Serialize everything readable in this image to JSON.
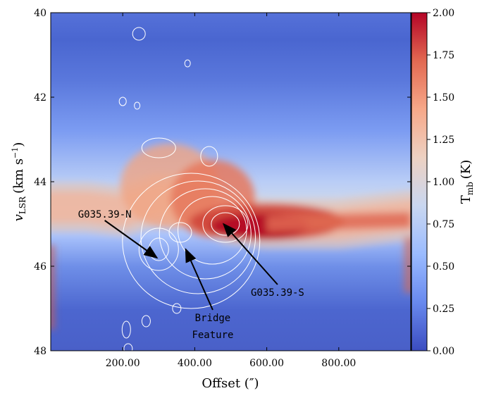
{
  "chart_data": {
    "type": "heatmap",
    "title": "",
    "xlabel": "Offset (″)",
    "ylabel_main": "v",
    "ylabel_sub": "LSR",
    "ylabel_unit": "(km s",
    "ylabel_exp": "−1",
    "ylabel_close": ")",
    "xlim": [
      0,
      1000
    ],
    "ylim": [
      48,
      40
    ],
    "x_ticks": [
      200,
      400,
      600,
      800
    ],
    "x_tick_labels": [
      "200.00",
      "400.00",
      "600.00",
      "800.00"
    ],
    "y_ticks": [
      40,
      42,
      44,
      46,
      48
    ],
    "y_tick_labels": [
      "40",
      "42",
      "44",
      "46",
      "48"
    ],
    "colorbar": {
      "label_main": "T",
      "label_sub": "mb",
      "label_unit": "(K)",
      "min": 0.0,
      "max": 2.0,
      "ticks": [
        0.0,
        0.25,
        0.5,
        0.75,
        1.0,
        1.25,
        1.5,
        1.75,
        2.0
      ],
      "tick_labels": [
        "0.00",
        "0.25",
        "0.50",
        "0.75",
        "1.00",
        "1.25",
        "1.50",
        "1.75",
        "2.00"
      ],
      "colormap": "coolwarm",
      "colors": [
        "#3b4cc0",
        "#6889ee",
        "#9abbff",
        "#c9d7f0",
        "#edd1c2",
        "#f7a889",
        "#e26952",
        "#b40426"
      ]
    },
    "emission_ridge": [
      {
        "x": 0,
        "v": 44.6
      },
      {
        "x": 100,
        "v": 44.6
      },
      {
        "x": 200,
        "v": 44.7
      },
      {
        "x": 300,
        "v": 44.4
      },
      {
        "x": 400,
        "v": 44.5
      },
      {
        "x": 500,
        "v": 44.9
      },
      {
        "x": 600,
        "v": 45.0
      },
      {
        "x": 700,
        "v": 45.0
      },
      {
        "x": 800,
        "v": 45.0
      },
      {
        "x": 900,
        "v": 44.9
      },
      {
        "x": 1000,
        "v": 44.8
      }
    ],
    "contour_overlay": "white contours of a second tracer centred near offset 200–550″, v ≈ 44–47.5 km/s",
    "annotations": [
      {
        "text": "G035.39-N",
        "label_at": [
          150,
          44.85
        ],
        "arrow_to": [
          295,
          45.8
        ]
      },
      {
        "text": "G035.39-S",
        "label_at": [
          630,
          46.7
        ],
        "arrow_to": [
          480,
          45.0
        ]
      },
      {
        "text": "Bridge",
        "label_at": [
          450,
          47.3
        ],
        "arrow_to": [
          375,
          45.6
        ]
      },
      {
        "text": "Feature",
        "label_at": [
          450,
          47.7
        ],
        "arrow_to": null
      }
    ]
  }
}
